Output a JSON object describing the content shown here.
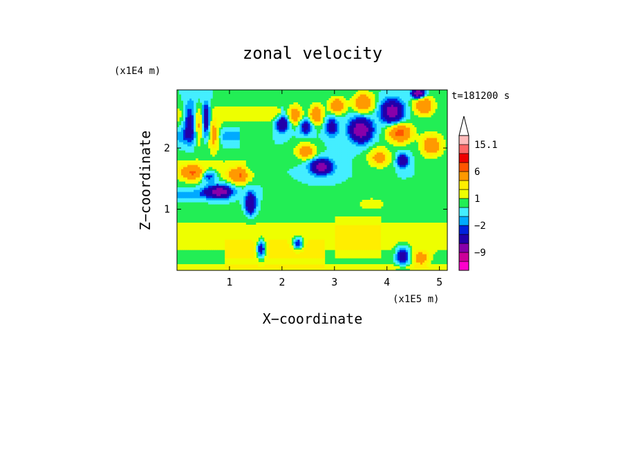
{
  "chart_data": {
    "type": "heatmap",
    "title": "zonal velocity",
    "xlabel": "X−coordinate",
    "ylabel": "Z−coordinate",
    "x_multiplier_label": "(x1E5 m)",
    "y_multiplier_label": "(x1E4 m)",
    "time_label": "t=181200 s",
    "xlim": [
      0,
      5.15
    ],
    "ylim": [
      0,
      2.95
    ],
    "x_ticks": [
      1,
      2,
      3,
      4,
      5
    ],
    "y_ticks": [
      1,
      2
    ],
    "x_tick_labels": [
      "1",
      "2",
      "3",
      "4",
      "5"
    ],
    "y_tick_labels": [
      "1",
      "2"
    ],
    "colorbar": {
      "levels": [
        -15.1,
        -12,
        -9,
        -6,
        -3,
        -2,
        -1,
        0,
        1,
        2,
        3,
        6,
        9,
        12,
        15.1
      ],
      "colors": [
        "#ff00cc",
        "#cc0099",
        "#8800aa",
        "#2200aa",
        "#0022dd",
        "#00aaff",
        "#44eeff",
        "#22ee55",
        "#eeff00",
        "#ffee00",
        "#ff9900",
        "#ff5500",
        "#ee0000",
        "#ff6666",
        "#ffbbbb"
      ],
      "labeled_levels": [
        "15.1",
        "6",
        "1",
        "−2",
        "−9"
      ],
      "extend_max": true
    },
    "background_color": "#22ee55",
    "features": [
      {
        "kind": "band",
        "x0": 0.0,
        "x1": 2.0,
        "z": 2.55,
        "dz": 0.18,
        "value": 1.5
      },
      {
        "kind": "band",
        "x0": 0.0,
        "x1": 1.3,
        "z": 1.65,
        "dz": 0.2,
        "value": 1.5
      },
      {
        "kind": "band",
        "x0": 0.0,
        "x1": 5.15,
        "z": 0.55,
        "dz": 0.35,
        "value": 1.5
      },
      {
        "kind": "band",
        "x0": 0.9,
        "x1": 2.8,
        "z": 0.25,
        "dz": 0.25,
        "value": 1.5
      },
      {
        "kind": "band",
        "x0": 3.0,
        "x1": 3.9,
        "z": 0.55,
        "dz": 0.3,
        "value": 1.5
      },
      {
        "kind": "band",
        "x0": 0.0,
        "x1": 1.2,
        "z": 2.2,
        "dz": 0.12,
        "value": -1.5
      },
      {
        "kind": "band",
        "x0": 0.0,
        "x1": 1.0,
        "z": 1.25,
        "dz": 0.08,
        "value": -1.5
      },
      {
        "kind": "band",
        "x0": 0.0,
        "x1": 5.15,
        "z": 0.05,
        "dz": 0.05,
        "value": 1.5
      },
      {
        "kind": "blob",
        "x": 0.25,
        "z": 2.45,
        "rx": 0.12,
        "rz": 0.3,
        "value": -5
      },
      {
        "kind": "blob",
        "x": 0.42,
        "z": 2.3,
        "rx": 0.1,
        "rz": 0.25,
        "value": 4
      },
      {
        "kind": "blob",
        "x": 0.55,
        "z": 2.5,
        "rx": 0.08,
        "rz": 0.22,
        "value": -7
      },
      {
        "kind": "blob",
        "x": 0.7,
        "z": 2.2,
        "rx": 0.1,
        "rz": 0.22,
        "value": 5
      },
      {
        "kind": "blob",
        "x": 0.3,
        "z": 1.6,
        "rx": 0.2,
        "rz": 0.12,
        "value": 5
      },
      {
        "kind": "blob",
        "x": 0.6,
        "z": 1.55,
        "rx": 0.15,
        "rz": 0.1,
        "value": -4
      },
      {
        "kind": "blob",
        "x": 0.8,
        "z": 1.3,
        "rx": 0.25,
        "rz": 0.1,
        "value": -7
      },
      {
        "kind": "blob",
        "x": 1.2,
        "z": 1.55,
        "rx": 0.2,
        "rz": 0.12,
        "value": 5
      },
      {
        "kind": "blob",
        "x": 1.4,
        "z": 1.1,
        "rx": 0.1,
        "rz": 0.18,
        "value": -6
      },
      {
        "kind": "blob",
        "x": 2.0,
        "z": 2.4,
        "rx": 0.12,
        "rz": 0.12,
        "value": -6
      },
      {
        "kind": "blob",
        "x": 2.25,
        "z": 2.55,
        "rx": 0.12,
        "rz": 0.15,
        "value": 5
      },
      {
        "kind": "blob",
        "x": 2.45,
        "z": 2.35,
        "rx": 0.12,
        "rz": 0.12,
        "value": -4
      },
      {
        "kind": "blob",
        "x": 2.65,
        "z": 2.55,
        "rx": 0.12,
        "rz": 0.15,
        "value": 6
      },
      {
        "kind": "blob",
        "x": 2.95,
        "z": 2.35,
        "rx": 0.12,
        "rz": 0.15,
        "value": -4
      },
      {
        "kind": "blob",
        "x": 2.45,
        "z": 1.95,
        "rx": 0.18,
        "rz": 0.12,
        "value": 5
      },
      {
        "kind": "blob",
        "x": 2.75,
        "z": 1.7,
        "rx": 0.2,
        "rz": 0.12,
        "value": -8
      },
      {
        "kind": "blob",
        "x": 3.05,
        "z": 2.7,
        "rx": 0.15,
        "rz": 0.12,
        "value": 6
      },
      {
        "kind": "blob",
        "x": 3.5,
        "z": 2.3,
        "rx": 0.2,
        "rz": 0.18,
        "value": -9
      },
      {
        "kind": "blob",
        "x": 3.55,
        "z": 2.75,
        "rx": 0.18,
        "rz": 0.15,
        "value": 6
      },
      {
        "kind": "blob",
        "x": 4.1,
        "z": 2.6,
        "rx": 0.2,
        "rz": 0.18,
        "value": -8
      },
      {
        "kind": "blob",
        "x": 4.25,
        "z": 2.25,
        "rx": 0.22,
        "rz": 0.15,
        "value": 7
      },
      {
        "kind": "blob",
        "x": 4.7,
        "z": 2.7,
        "rx": 0.18,
        "rz": 0.15,
        "value": 6
      },
      {
        "kind": "blob",
        "x": 4.85,
        "z": 2.05,
        "rx": 0.2,
        "rz": 0.18,
        "value": 5
      },
      {
        "kind": "blob",
        "x": 4.6,
        "z": 2.9,
        "rx": 0.12,
        "rz": 0.08,
        "value": -9
      },
      {
        "kind": "blob",
        "x": 3.85,
        "z": 1.85,
        "rx": 0.2,
        "rz": 0.15,
        "value": 4
      },
      {
        "kind": "blob",
        "x": 4.3,
        "z": 1.8,
        "rx": 0.1,
        "rz": 0.1,
        "value": -6
      },
      {
        "kind": "blob",
        "x": 1.6,
        "z": 0.35,
        "rx": 0.08,
        "rz": 0.15,
        "value": -6
      },
      {
        "kind": "blob",
        "x": 2.3,
        "z": 0.45,
        "rx": 0.1,
        "rz": 0.1,
        "value": -5
      },
      {
        "kind": "blob",
        "x": 4.3,
        "z": 0.25,
        "rx": 0.12,
        "rz": 0.15,
        "value": -5
      },
      {
        "kind": "blob",
        "x": 4.65,
        "z": 0.2,
        "rx": 0.15,
        "rz": 0.12,
        "value": 4
      },
      {
        "kind": "blob",
        "x": 3.7,
        "z": 1.1,
        "rx": 0.3,
        "rz": 0.1,
        "value": 1.5
      }
    ]
  }
}
